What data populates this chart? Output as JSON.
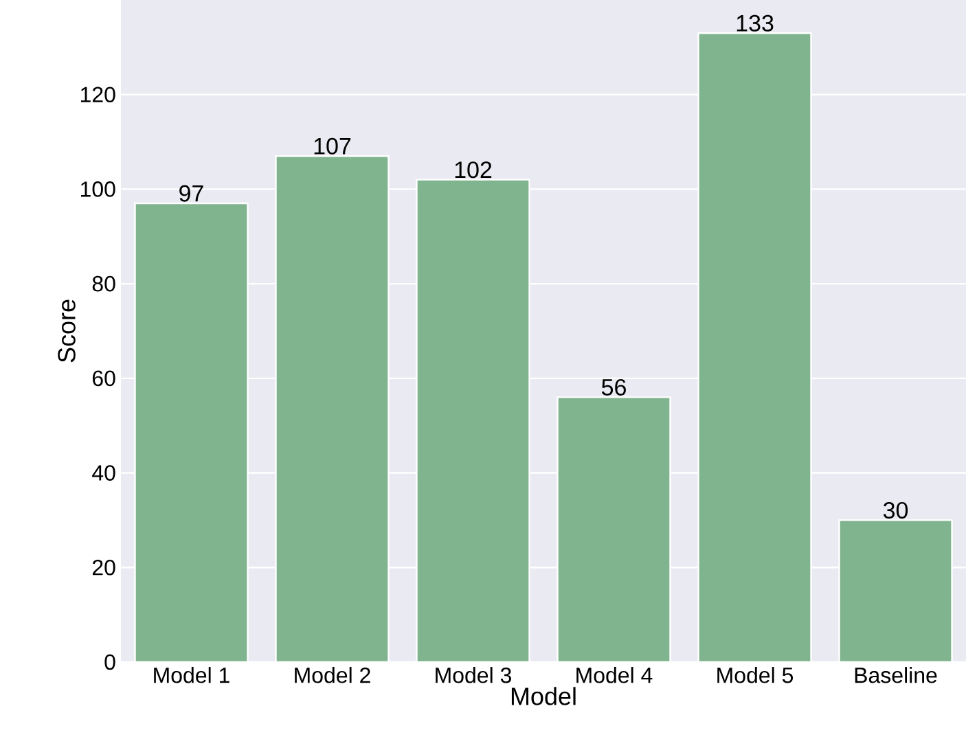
{
  "chart_data": {
    "type": "bar",
    "xlabel": "Model",
    "ylabel": "Score",
    "categories": [
      "Model 1",
      "Model 2",
      "Model 3",
      "Model 4",
      "Model 5",
      "Baseline"
    ],
    "values": [
      97,
      107,
      102,
      56,
      133,
      30
    ],
    "color": "#80b48e",
    "ylim": [
      0,
      140
    ],
    "yticks": [
      0,
      20,
      40,
      60,
      80,
      100,
      120
    ],
    "grid": "y",
    "data_labels": true
  }
}
